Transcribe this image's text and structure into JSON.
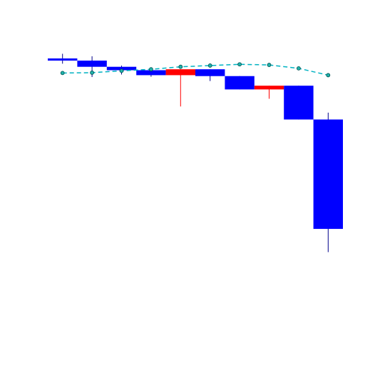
{
  "chart_data": {
    "type": "candlestick",
    "title": "",
    "xlabel": "",
    "ylabel": "",
    "x": [
      1,
      2,
      3,
      4,
      5,
      6,
      7,
      8,
      9,
      10
    ],
    "ylim": [
      -9.1,
      0.4
    ],
    "grid": false,
    "legend": "none",
    "candles": [
      {
        "x": 1,
        "open": -0.45,
        "close": -0.52,
        "high": -0.3,
        "low": -0.62
      },
      {
        "x": 2,
        "open": -0.52,
        "close": -0.72,
        "high": -0.38,
        "low": -1.05
      },
      {
        "x": 3,
        "open": -0.72,
        "close": -0.83,
        "high": -0.68,
        "low": -0.97
      },
      {
        "x": 4,
        "open": -0.83,
        "close": -0.99,
        "high": -0.78,
        "low": -1.04
      },
      {
        "x": 5,
        "open": -0.99,
        "close": -0.8,
        "high": -0.8,
        "low": -2.0
      },
      {
        "x": 6,
        "open": -0.8,
        "close": -1.02,
        "high": -0.8,
        "low": -1.18
      },
      {
        "x": 7,
        "open": -1.02,
        "close": -1.45,
        "high": -1.02,
        "low": -1.45
      },
      {
        "x": 8,
        "open": -1.45,
        "close": -1.33,
        "high": -1.33,
        "low": -1.75
      },
      {
        "x": 9,
        "open": -1.33,
        "close": -2.42,
        "high": -1.33,
        "low": -2.42
      },
      {
        "x": 10,
        "open": -2.42,
        "close": -5.95,
        "high": -2.2,
        "low": -6.7
      }
    ],
    "series": [
      {
        "type": "line",
        "style": "dashed-markers",
        "values": [
          -0.92,
          -0.91,
          -0.85,
          -0.8,
          -0.72,
          -0.68,
          -0.64,
          -0.66,
          -0.77,
          -0.99
        ]
      }
    ],
    "colors": {
      "down": "#0000ff",
      "up": "#ff0000",
      "down_wick": "#00008b",
      "up_wick": "#ff0000",
      "line": "#00b2c2",
      "marker_fill": "#20b2aa",
      "marker_edge": "#005050"
    }
  }
}
